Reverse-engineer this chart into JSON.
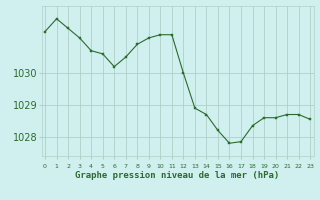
{
  "x": [
    0,
    1,
    2,
    3,
    4,
    5,
    6,
    7,
    8,
    9,
    10,
    11,
    12,
    13,
    14,
    15,
    16,
    17,
    18,
    19,
    20,
    21,
    22,
    23
  ],
  "y": [
    1031.3,
    1031.7,
    1031.4,
    1031.1,
    1030.7,
    1030.6,
    1030.2,
    1030.5,
    1030.9,
    1031.1,
    1031.2,
    1031.2,
    1030.0,
    1028.9,
    1028.7,
    1028.2,
    1027.8,
    1027.85,
    1028.35,
    1028.6,
    1028.6,
    1028.7,
    1028.7,
    1028.55
  ],
  "line_color": "#2d6a2d",
  "marker_color": "#2d6a2d",
  "bg_color": "#cff0ee",
  "grid_color": "#b0cfc8",
  "xlabel": "Graphe pression niveau de la mer (hPa)",
  "xlabel_color": "#2d6a2d",
  "tick_color": "#2d6a2d",
  "ylim": [
    1027.4,
    1032.1
  ],
  "yticks": [
    1028,
    1029,
    1030
  ],
  "xticks": [
    0,
    1,
    2,
    3,
    4,
    5,
    6,
    7,
    8,
    9,
    10,
    11,
    12,
    13,
    14,
    15,
    16,
    17,
    18,
    19,
    20,
    21,
    22,
    23
  ],
  "xlim": [
    -0.3,
    23.3
  ]
}
